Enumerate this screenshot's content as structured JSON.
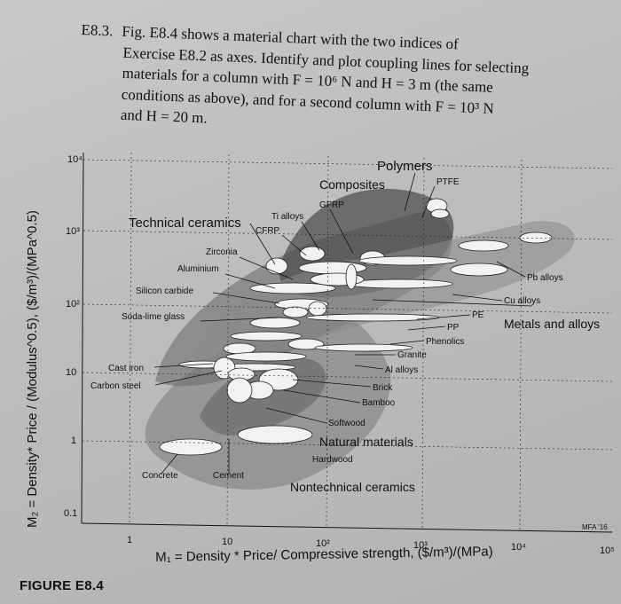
{
  "exercise": {
    "number": "E8.3.",
    "lines": [
      "Fig. E8.4 shows a material chart with the two indices of",
      "Exercise E8.2 as axes. Identify and plot coupling lines for selecting",
      "materials for a column with F = 10⁶ N and H = 3 m (the same",
      "conditions as above), and for a second column with F = 10³ N",
      "and H = 20 m."
    ]
  },
  "figure": {
    "caption": "FIGURE E8.4",
    "xlabel": "M₁ = Density * Price/ Compressive strength, ($/m³)/(MPa)",
    "ylabel": "M₂ = Density* Price / (Modulus^0.5), ($/m³)/(MPa^0.5)",
    "watermark": "MFA '16"
  },
  "chart_data": {
    "type": "scatter",
    "xscale": "log",
    "yscale": "log",
    "x_ticks": [
      "1",
      "10",
      "10²",
      "10³",
      "10⁴",
      "10⁵"
    ],
    "y_ticks": [
      "0.1",
      "1",
      "10",
      "10²",
      "10³",
      "10⁴"
    ],
    "xlim": [
      0.1,
      100000
    ],
    "ylim": [
      0.1,
      10000
    ],
    "families": [
      "Polymers",
      "Composites",
      "Technical ceramics",
      "Metals and alloys",
      "Natural materials",
      "Nontechnical ceramics"
    ],
    "labels": [
      "GFRP",
      "PTFE",
      "Ti alloys",
      "CFRP",
      "Zirconia",
      "Aluminium",
      "Silicon carbide",
      "Soda-lime glass",
      "Pb alloys",
      "Cu alloys",
      "PE",
      "PP",
      "Phenolics",
      "Granite",
      "Al alloys",
      "Cast iron",
      "Carbon steel",
      "Brick",
      "Bamboo",
      "Softwood",
      "Hardwood",
      "Concrete",
      "Cement"
    ]
  }
}
